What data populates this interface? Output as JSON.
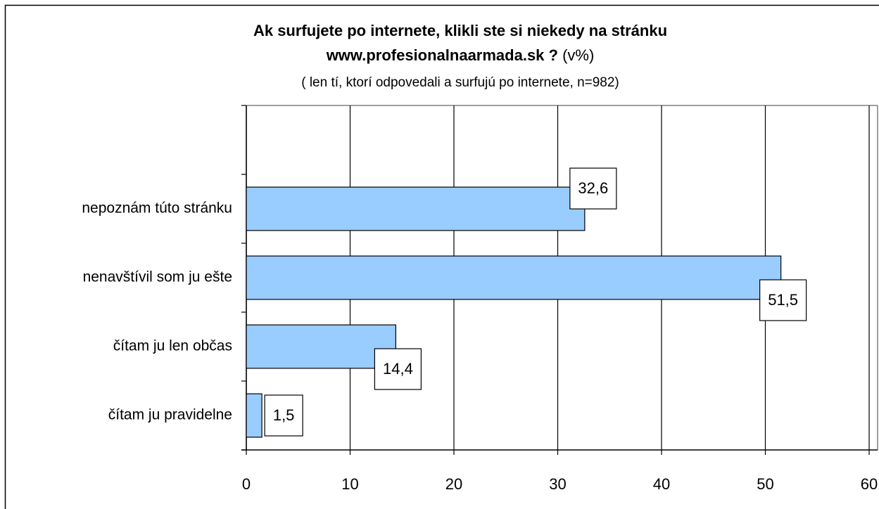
{
  "chart_data": {
    "type": "barh",
    "title": [
      "Ak surfujete po internete, klikli ste si niekedy na stránku",
      "www.profesionalnaarmada.sk ?"
    ],
    "title_suffix": "(v%)",
    "subtitle": "( len tí, ktorí odpovedali a surfujú po internete, n=982)",
    "categories": [
      null,
      "nepoznám túto stránku",
      "nenavštívil som ju ešte",
      "čítam ju len občas",
      "čítam ju pravidelne"
    ],
    "values": [
      null,
      32.6,
      51.5,
      14.4,
      1.5
    ],
    "value_labels": [
      null,
      "32,6",
      "51,5",
      "14,4",
      "1,5"
    ],
    "color": "#99ccff",
    "xlim": [
      0,
      60
    ],
    "xticks": [
      0,
      10,
      20,
      30,
      40,
      50,
      60
    ],
    "grid": true
  }
}
